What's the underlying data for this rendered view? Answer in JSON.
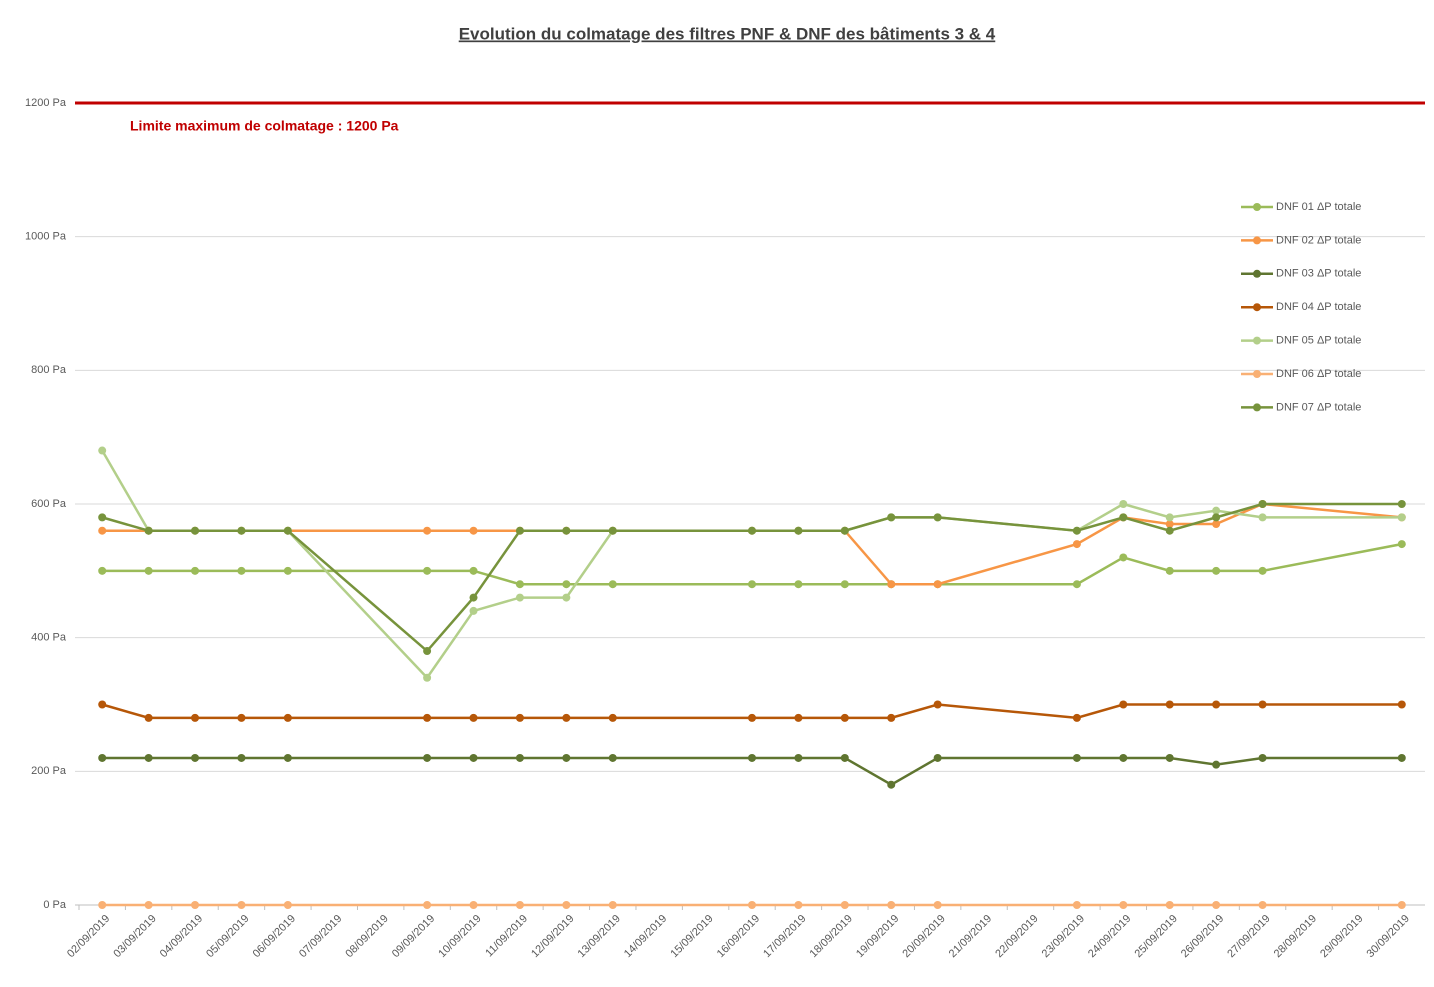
{
  "chart_data": {
    "type": "line",
    "title": "Evolution du colmatage des filtres PNF & DNF des bâtiments 3 & 4",
    "xticks": [
      "02/09/2019",
      "03/09/2019",
      "04/09/2019",
      "05/09/2019",
      "06/09/2019",
      "07/09/2019",
      "08/09/2019",
      "09/09/2019",
      "10/09/2019",
      "11/09/2019",
      "12/09/2019",
      "13/09/2019",
      "14/09/2019",
      "15/09/2019",
      "16/09/2019",
      "17/09/2019",
      "18/09/2019",
      "19/09/2019",
      "20/09/2019",
      "21/09/2019",
      "22/09/2019",
      "23/09/2019",
      "24/09/2019",
      "25/09/2019",
      "26/09/2019",
      "27/09/2019",
      "28/09/2019",
      "29/09/2019",
      "30/09/2019"
    ],
    "x": [
      "02/09/2019",
      "03/09/2019",
      "04/09/2019",
      "05/09/2019",
      "06/09/2019",
      "09/09/2019",
      "10/09/2019",
      "11/09/2019",
      "12/09/2019",
      "13/09/2019",
      "16/09/2019",
      "17/09/2019",
      "18/09/2019",
      "19/09/2019",
      "20/09/2019",
      "23/09/2019",
      "24/09/2019",
      "25/09/2019",
      "26/09/2019",
      "27/09/2019",
      "30/09/2019"
    ],
    "series": [
      {
        "name": "DNF 01 ΔP totale",
        "color": "#9bbb59",
        "values": [
          500,
          500,
          500,
          500,
          500,
          500,
          500,
          480,
          480,
          480,
          480,
          480,
          480,
          480,
          480,
          480,
          520,
          500,
          500,
          500,
          540
        ]
      },
      {
        "name": "DNF 02 ΔP totale",
        "color": "#f79646",
        "values": [
          560,
          560,
          560,
          560,
          560,
          560,
          560,
          560,
          560,
          560,
          560,
          560,
          560,
          480,
          480,
          540,
          580,
          570,
          570,
          600,
          580
        ]
      },
      {
        "name": "DNF 03 ΔP totale",
        "color": "#5f7530",
        "values": [
          220,
          220,
          220,
          220,
          220,
          220,
          220,
          220,
          220,
          220,
          220,
          220,
          220,
          180,
          220,
          220,
          220,
          220,
          210,
          220,
          220
        ]
      },
      {
        "name": "DNF 04 ΔP totale",
        "color": "#b65708",
        "values": [
          300,
          280,
          280,
          280,
          280,
          280,
          280,
          280,
          280,
          280,
          280,
          280,
          280,
          280,
          300,
          280,
          300,
          300,
          300,
          300,
          300
        ]
      },
      {
        "name": "DNF 05 ΔP totale",
        "color": "#b3cf8a",
        "values": [
          680,
          560,
          560,
          560,
          560,
          340,
          440,
          460,
          460,
          560,
          560,
          560,
          560,
          580,
          580,
          560,
          600,
          580,
          590,
          580,
          580
        ]
      },
      {
        "name": "DNF 06 ΔP totale",
        "color": "#f9b074",
        "values": [
          0,
          0,
          0,
          0,
          0,
          0,
          0,
          0,
          0,
          0,
          0,
          0,
          0,
          0,
          0,
          0,
          0,
          0,
          0,
          0,
          0
        ]
      },
      {
        "name": "DNF 07 ΔP totale",
        "color": "#77933c",
        "values": [
          580,
          560,
          560,
          560,
          560,
          380,
          460,
          560,
          560,
          560,
          560,
          560,
          560,
          580,
          580,
          560,
          580,
          560,
          580,
          600,
          600
        ]
      }
    ],
    "ylim": [
      0,
      1200
    ],
    "yticks": [
      {
        "value": 0,
        "label": "0 Pa"
      },
      {
        "value": 200,
        "label": "200 Pa"
      },
      {
        "value": 400,
        "label": "400 Pa"
      },
      {
        "value": 600,
        "label": "600 Pa"
      },
      {
        "value": 800,
        "label": "800 Pa"
      },
      {
        "value": 1000,
        "label": "1000 Pa"
      },
      {
        "value": 1200,
        "label": "1200 Pa"
      }
    ],
    "grid": true,
    "legend": "right",
    "reference_line": {
      "value": 1200,
      "label": "Limite maximum de colmatage : 1200 Pa",
      "color": "#c00000"
    }
  }
}
